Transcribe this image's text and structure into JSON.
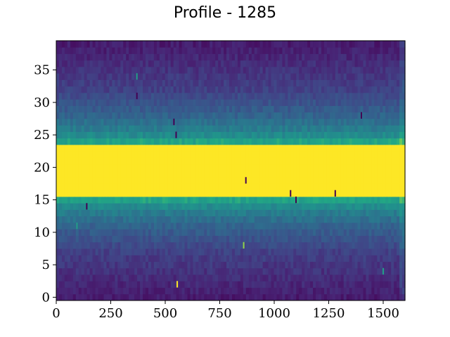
{
  "chart_data": {
    "type": "heatmap",
    "title": "Profile - 1285",
    "xlabel": "",
    "ylabel": "",
    "xlim": [
      0,
      1600
    ],
    "ylim": [
      -0.5,
      39.5
    ],
    "x_ticks": [
      0,
      250,
      500,
      750,
      1000,
      1250,
      1500
    ],
    "y_ticks": [
      0,
      5,
      10,
      15,
      20,
      25,
      30,
      35
    ],
    "n_columns": 1600,
    "n_rows": 40,
    "colormap": "viridis",
    "grid": false,
    "row_profile": [
      0.1,
      0.12,
      0.14,
      0.16,
      0.18,
      0.2,
      0.22,
      0.24,
      0.28,
      0.32,
      0.36,
      0.4,
      0.46,
      0.52,
      0.6,
      0.72,
      1.0,
      1.0,
      1.0,
      1.0,
      1.0,
      1.0,
      1.0,
      1.0,
      0.72,
      0.6,
      0.52,
      0.46,
      0.4,
      0.36,
      0.32,
      0.28,
      0.24,
      0.22,
      0.2,
      0.18,
      0.16,
      0.14,
      0.12,
      0.1
    ],
    "outliers": [
      {
        "x": 555,
        "y": 2,
        "value": 1.0
      },
      {
        "x": 140,
        "y": 14,
        "value": 0.0
      },
      {
        "x": 870,
        "y": 18,
        "value": 0.0
      },
      {
        "x": 1075,
        "y": 16,
        "value": 0.0
      },
      {
        "x": 1100,
        "y": 15,
        "value": 0.0
      },
      {
        "x": 1280,
        "y": 16,
        "value": 0.0
      },
      {
        "x": 550,
        "y": 25,
        "value": 0.0
      },
      {
        "x": 540,
        "y": 27,
        "value": 0.0
      },
      {
        "x": 1400,
        "y": 28,
        "value": 0.0
      },
      {
        "x": 370,
        "y": 31,
        "value": 0.0
      },
      {
        "x": 370,
        "y": 34,
        "value": 0.7
      },
      {
        "x": 860,
        "y": 8,
        "value": 0.9
      },
      {
        "x": 95,
        "y": 11,
        "value": 0.7
      },
      {
        "x": 1500,
        "y": 4,
        "value": 0.7
      }
    ]
  }
}
